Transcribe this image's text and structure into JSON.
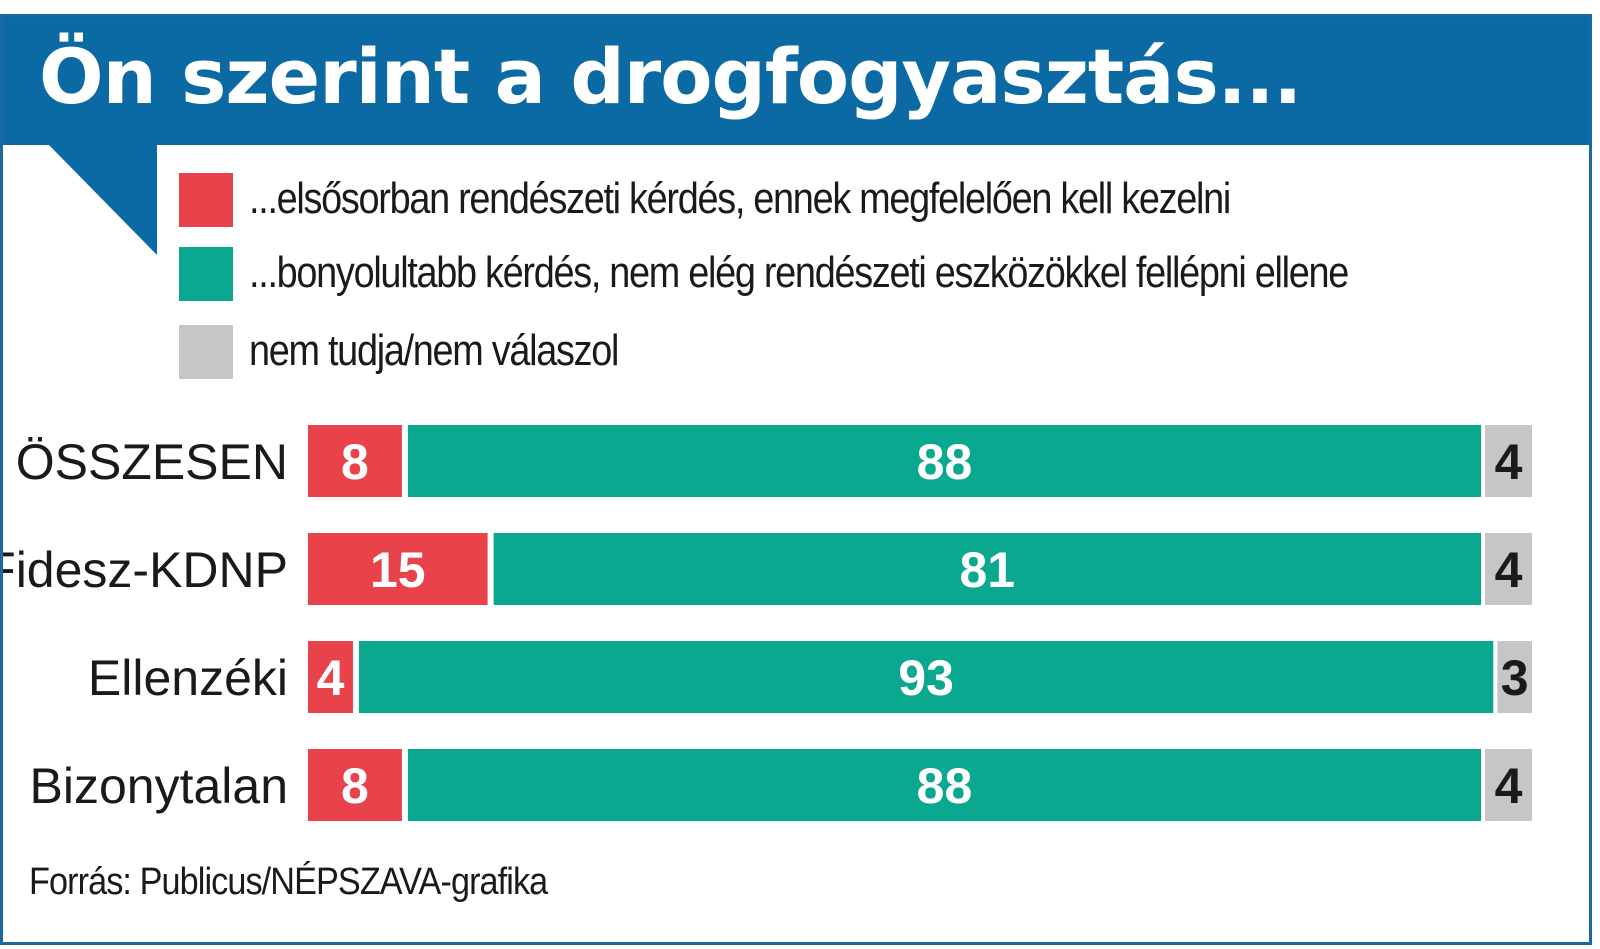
{
  "chart_data": {
    "type": "bar",
    "orientation": "horizontal",
    "stacked": true,
    "title": "Ön szerint a drogfogyasztás...",
    "categories": [
      "ÖSSZESEN",
      "Fidesz-KDNP",
      "Ellenzéki",
      "Bizonytalan"
    ],
    "series": [
      {
        "name": "...elsősorban rendészeti kérdés, ennek megfelelően kell kezelni",
        "color": "#e8424b",
        "label_color": "#ffffff",
        "values": [
          8,
          15,
          4,
          8
        ]
      },
      {
        "name": "...bonyolultabb kérdés, nem elég rendészeti eszközökkel fellépni ellene",
        "color": "#0aa88e",
        "label_color": "#ffffff",
        "values": [
          88,
          81,
          93,
          88
        ]
      },
      {
        "name": "nem tudja/nem válaszol",
        "color": "#c6c6c6",
        "label_color": "#1a1a1a",
        "values": [
          4,
          4,
          3,
          4
        ]
      }
    ],
    "xlim": [
      0,
      100
    ],
    "grid": false,
    "legend": "top"
  },
  "source": "Forrás: Publicus/NÉPSZAVA-grafika",
  "colors": {
    "header": "#0b69a3",
    "frame": "#1a6aa0"
  }
}
